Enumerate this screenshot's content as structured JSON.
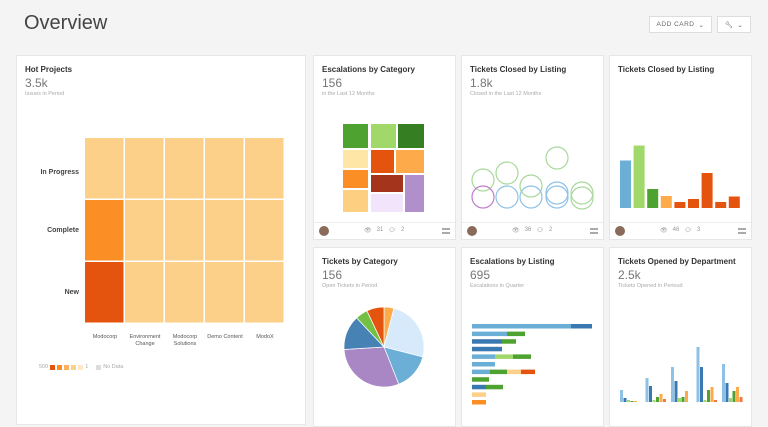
{
  "header": {
    "title": "Overview",
    "add_card": "ADD CARD",
    "wrench_icon": "wrench-icon",
    "chevron": "chevron-down-icon"
  },
  "cards": [
    {
      "title": "Hot Projects",
      "value": "3.5k",
      "subtitle": "Issues in Period"
    },
    {
      "title": "Escalations by Category",
      "value": "156",
      "subtitle": "in the Last 12 Months",
      "views": "31",
      "comments": "2"
    },
    {
      "title": "Tickets Closed by Listing",
      "value": "1.8k",
      "subtitle": "Closed in the Last 12 Months",
      "views": "36",
      "comments": "2"
    },
    {
      "title": "Tickets Closed by Listing",
      "views": "46",
      "comments": "3"
    },
    {
      "title": "Tickets by Category",
      "value": "156",
      "subtitle": "Open Tickets in Period"
    },
    {
      "title": "Escalations by Listing",
      "value": "695",
      "subtitle": "Escalations in Quarter"
    },
    {
      "title": "Tickets Opened by Department",
      "value": "2.5k",
      "subtitle": "Tickets Opened in Perioud"
    }
  ],
  "chart_data": [
    {
      "type": "heatmap",
      "rows": [
        "In Progress",
        "Complete",
        "New"
      ],
      "columns": [
        "Modocorp",
        "Environment Change",
        "Modocorp Solutions",
        "Demo Content",
        "ModoX"
      ],
      "values": [
        [
          60,
          40,
          40,
          40,
          40
        ],
        [
          350,
          40,
          40,
          40,
          40
        ],
        [
          500,
          40,
          40,
          40,
          40
        ]
      ],
      "legend": {
        "max": "500",
        "min": "1",
        "no_data": "No Data"
      },
      "colors": [
        "#e5540f",
        "#fb8e24",
        "#fdb05b",
        "#fdd08a",
        "#fde9c9"
      ]
    },
    {
      "type": "treemap",
      "colors": [
        "#4ea22f",
        "#a0d86a",
        "#367e22",
        "#fde6a6",
        "#e5540f",
        "#fdaa4a",
        "#fb8e24",
        "#a5341c",
        "#fdcf80",
        "#f2e4fb",
        "#b08fcb"
      ]
    },
    {
      "type": "scatter",
      "colors": {
        "green": "#a8d89a",
        "blue": "#8ec1e6",
        "purple": "#c07ccc"
      }
    },
    {
      "type": "bar",
      "values": [
        95,
        125,
        38,
        24,
        12,
        18,
        70,
        12,
        23
      ],
      "colors": [
        "#6baed6",
        "#a0d86a",
        "#4ea22f",
        "#fdaa4a",
        "#e5540f",
        "#e5540f",
        "#e5540f",
        "#e5540f",
        "#e5540f"
      ]
    },
    {
      "type": "pie",
      "values": [
        4,
        25,
        15,
        30,
        14,
        5,
        7
      ],
      "colors": [
        "#fdaa4a",
        "#d6eafc",
        "#6baed6",
        "#a887c4",
        "#4682b4",
        "#74c042",
        "#e5540f"
      ]
    },
    {
      "type": "bar",
      "orientation": "horizontal",
      "stacked": true,
      "series_colors": [
        "#6baed6",
        "#3a78b2",
        "#a0d86a",
        "#4ea22f",
        "#fdd08a",
        "#e5540f",
        "#fb8e24"
      ],
      "rows": [
        [
          [
            0,
            99
          ],
          [
            1,
            21
          ]
        ],
        [
          [
            0,
            35
          ],
          [
            3,
            18
          ]
        ],
        [
          [
            1,
            30
          ],
          [
            3,
            14
          ]
        ],
        [
          [
            1,
            30
          ]
        ],
        [
          [
            0,
            23
          ],
          [
            2,
            18
          ],
          [
            3,
            18
          ]
        ],
        [
          [
            0,
            23
          ]
        ],
        [
          [
            0,
            18
          ],
          [
            3,
            17
          ],
          [
            4,
            14
          ],
          [
            5,
            14
          ]
        ],
        [
          [
            3,
            17
          ]
        ],
        [
          [
            1,
            14
          ],
          [
            3,
            17
          ]
        ],
        [
          [
            4,
            14
          ]
        ],
        [
          [
            6,
            14
          ]
        ]
      ]
    },
    {
      "type": "bar",
      "groups": 5,
      "series_colors": [
        "#8ec1e6",
        "#3a78b2",
        "#a0d86a",
        "#4ea22f",
        "#fdaa4a",
        "#f07a3a"
      ],
      "values": [
        [
          12,
          4,
          2,
          1,
          1,
          0
        ],
        [
          24,
          16,
          2,
          5,
          8,
          3
        ],
        [
          35,
          21,
          4,
          5,
          11,
          0
        ],
        [
          55,
          35,
          2,
          12,
          15,
          2
        ],
        [
          38,
          19,
          4,
          11,
          15,
          5
        ]
      ]
    }
  ]
}
